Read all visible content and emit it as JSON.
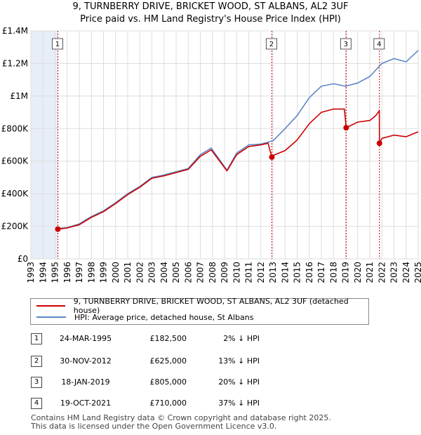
{
  "header": {
    "title": "9, TURNBERRY DRIVE, BRICKET WOOD, ST ALBANS, AL2 3UF",
    "subtitle": "Price paid vs. HM Land Registry's House Price Index (HPI)"
  },
  "colors": {
    "property_line": "#cc0000",
    "hpi_line": "#5b87c8",
    "marker_box_border": "#555555",
    "shade": "#e8eef8",
    "vline": "#cc0000"
  },
  "chart_data": {
    "type": "line",
    "title": "9, TURNBERRY DRIVE, BRICKET WOOD, ST ALBANS, AL2 3UF",
    "xlabel": "",
    "ylabel": "",
    "xlim": [
      1993,
      2025
    ],
    "ylim": [
      0,
      1400000
    ],
    "y_ticks": [
      {
        "value": 0,
        "label": "£0"
      },
      {
        "value": 200000,
        "label": "£200K"
      },
      {
        "value": 400000,
        "label": "£400K"
      },
      {
        "value": 600000,
        "label": "£600K"
      },
      {
        "value": 800000,
        "label": "£800K"
      },
      {
        "value": 1000000,
        "label": "£1M"
      },
      {
        "value": 1200000,
        "label": "£1.2M"
      },
      {
        "value": 1400000,
        "label": "£1.4M"
      }
    ],
    "x_ticks": [
      "1993",
      "1994",
      "1995",
      "1996",
      "1997",
      "1998",
      "1999",
      "2000",
      "2001",
      "2002",
      "2003",
      "2004",
      "2005",
      "2006",
      "2007",
      "2008",
      "2009",
      "2010",
      "2011",
      "2012",
      "2013",
      "2014",
      "2015",
      "2016",
      "2017",
      "2018",
      "2019",
      "2020",
      "2021",
      "2022",
      "2023",
      "2024",
      "2025"
    ],
    "grid": true,
    "shaded_ranges": [
      [
        1993,
        1995.23
      ]
    ],
    "series": [
      {
        "name": "9, TURNBERRY DRIVE, BRICKET WOOD, ST ALBANS, AL2 3UF (detached house)",
        "color": "#cc0000",
        "x": [
          1995.23,
          1996,
          1997,
          1998,
          1999,
          2000,
          2001,
          2002,
          2003,
          2004,
          2005,
          2006,
          2007,
          2007.9,
          2009.2,
          2010,
          2011,
          2012,
          2012.6,
          2012.91,
          2013,
          2014,
          2015,
          2016,
          2017,
          2018,
          2018.9,
          2019.05,
          2020,
          2021,
          2021.5,
          2021.79,
          2021.8,
          2022,
          2023,
          2024,
          2025
        ],
        "values": [
          182500,
          190000,
          210000,
          255000,
          290000,
          340000,
          395000,
          440000,
          495000,
          510000,
          530000,
          550000,
          630000,
          670000,
          540000,
          640000,
          690000,
          700000,
          710000,
          625000,
          635000,
          665000,
          730000,
          830000,
          900000,
          920000,
          920000,
          805000,
          840000,
          850000,
          880000,
          910000,
          710000,
          740000,
          760000,
          750000,
          780000
        ]
      },
      {
        "name": "HPI: Average price, detached house, St Albans",
        "color": "#5b87c8",
        "x": [
          1995,
          1996,
          1997,
          1998,
          1999,
          2000,
          2001,
          2002,
          2003,
          2004,
          2005,
          2006,
          2007,
          2007.9,
          2009.2,
          2010,
          2011,
          2012,
          2013,
          2014,
          2015,
          2016,
          2017,
          2018,
          2019,
          2020,
          2021,
          2022,
          2023,
          2024,
          2025
        ],
        "values": [
          185000,
          192000,
          215000,
          260000,
          295000,
          345000,
          400000,
          445000,
          500000,
          515000,
          535000,
          555000,
          640000,
          680000,
          545000,
          650000,
          700000,
          705000,
          725000,
          800000,
          880000,
          990000,
          1060000,
          1075000,
          1060000,
          1080000,
          1120000,
          1200000,
          1230000,
          1210000,
          1280000
        ]
      }
    ],
    "sales": [
      {
        "num": "1",
        "x": 1995.23,
        "price": 182500
      },
      {
        "num": "2",
        "x": 2012.91,
        "price": 625000
      },
      {
        "num": "3",
        "x": 2019.05,
        "price": 805000
      },
      {
        "num": "4",
        "x": 2021.8,
        "price": 710000
      }
    ]
  },
  "legend": {
    "items": [
      {
        "label": "9, TURNBERRY DRIVE, BRICKET WOOD, ST ALBANS, AL2 3UF (detached house)"
      },
      {
        "label": "HPI: Average price, detached house, St Albans"
      }
    ]
  },
  "transactions": [
    {
      "num": "1",
      "date": "24-MAR-1995",
      "price": "£182,500",
      "hpi": "2% ↓ HPI"
    },
    {
      "num": "2",
      "date": "30-NOV-2012",
      "price": "£625,000",
      "hpi": "13% ↓ HPI"
    },
    {
      "num": "3",
      "date": "18-JAN-2019",
      "price": "£805,000",
      "hpi": "20% ↓ HPI"
    },
    {
      "num": "4",
      "date": "19-OCT-2021",
      "price": "£710,000",
      "hpi": "37% ↓ HPI"
    }
  ],
  "footer": {
    "line1": "Contains HM Land Registry data © Crown copyright and database right 2025.",
    "line2": "This data is licensed under the Open Government Licence v3.0."
  }
}
